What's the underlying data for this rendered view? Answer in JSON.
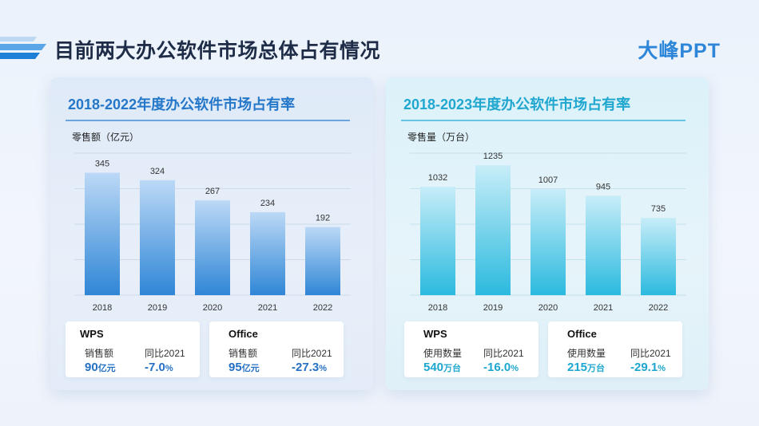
{
  "page": {
    "title": "目前两大办公软件市场总体占有情况",
    "brand": "大峰PPT"
  },
  "panels": [
    {
      "title": "2018-2022年度办公软件市场占有率",
      "unit_label": "零售额（亿元）",
      "cards": [
        {
          "name": "WPS",
          "metric_label": "销售额",
          "metric_value": "90",
          "metric_unit": "亿元",
          "yoy_label": "同比2021",
          "yoy_value": "-7.0",
          "yoy_unit": "%"
        },
        {
          "name": "Office",
          "metric_label": "销售额",
          "metric_value": "95",
          "metric_unit": "亿元",
          "yoy_label": "同比2021",
          "yoy_value": "-27.3",
          "yoy_unit": "%"
        }
      ]
    },
    {
      "title": "2018-2023年度办公软件市场占有率",
      "unit_label": "零售量（万台）",
      "cards": [
        {
          "name": "WPS",
          "metric_label": "使用数量",
          "metric_value": "540",
          "metric_unit": "万台",
          "yoy_label": "同比2021",
          "yoy_value": "-16.0",
          "yoy_unit": "%"
        },
        {
          "name": "Office",
          "metric_label": "使用数量",
          "metric_value": "215",
          "metric_unit": "万台",
          "yoy_label": "同比2021",
          "yoy_value": "-29.1",
          "yoy_unit": "%"
        }
      ]
    }
  ],
  "chart_data": [
    {
      "type": "bar",
      "title": "2018-2022年度办公软件市场占有率",
      "ylabel": "零售额（亿元）",
      "categories": [
        "2018",
        "2019",
        "2020",
        "2021",
        "2022"
      ],
      "values": [
        345,
        324,
        267,
        234,
        192
      ],
      "ylim": [
        0,
        400
      ],
      "grid": true,
      "colors": {
        "bar_top": "#bcd9f6",
        "bar_bottom": "#2f86d6",
        "grid": "#ccdaea"
      }
    },
    {
      "type": "bar",
      "title": "2018-2023年度办公软件市场占有率",
      "ylabel": "零售量（万台）",
      "categories": [
        "2018",
        "2019",
        "2020",
        "2021",
        "2022"
      ],
      "values": [
        1032,
        1235,
        1007,
        945,
        735
      ],
      "ylim": [
        0,
        1350
      ],
      "grid": true,
      "colors": {
        "bar_top": "#c7edf8",
        "bar_bottom": "#2bbadf",
        "grid": "#c4e2ec"
      }
    }
  ]
}
